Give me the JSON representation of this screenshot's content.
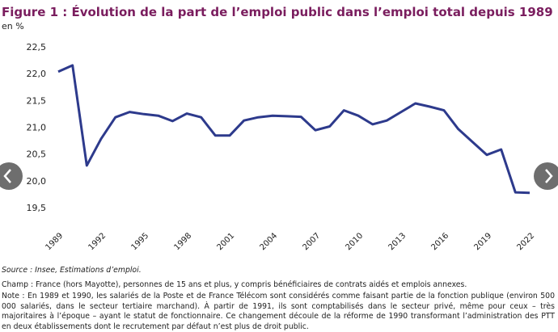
{
  "chart_data": {
    "type": "line",
    "title": "Figure 1 : Évolution de la part de l’emploi public dans l’emploi total depuis 1989",
    "y_unit": "en %",
    "categories": [
      "1989",
      null,
      null,
      "1992",
      null,
      null,
      "1995",
      null,
      null,
      "1998",
      null,
      null,
      "2001",
      null,
      null,
      "2004",
      null,
      null,
      "2007",
      null,
      null,
      "2010",
      null,
      null,
      "2013",
      null,
      null,
      "2016",
      null,
      null,
      "2019",
      null,
      null,
      "2022"
    ],
    "series": [
      {
        "color": "#2d3a8c",
        "values": [
          22.05,
          22.17,
          20.3,
          20.8,
          21.2,
          21.3,
          21.26,
          21.23,
          21.13,
          21.27,
          21.2,
          20.86,
          20.86,
          21.14,
          21.2,
          21.23,
          21.22,
          21.21,
          20.96,
          21.03,
          21.33,
          21.23,
          21.07,
          21.14,
          21.3,
          21.46,
          21.4,
          21.33,
          20.98,
          20.74,
          20.5,
          20.6,
          19.8,
          19.79
        ]
      }
    ],
    "ylim": [
      19.25,
      22.6
    ],
    "yticks": [
      {
        "value": 19.5,
        "label": "19,5"
      },
      {
        "value": 20,
        "label": "20,0"
      },
      {
        "value": 20.5,
        "label": "20,5"
      },
      {
        "value": 21,
        "label": "21,0"
      },
      {
        "value": 21.5,
        "label": "21,5"
      },
      {
        "value": 22,
        "label": "22,0"
      },
      {
        "value": 22.5,
        "label": "22,5"
      }
    ],
    "grid": false,
    "source": "Source : Insee, Estimations d’emploi.",
    "champ": "Champ : France (hors Mayotte), personnes de 15 ans et plus, y compris bénéficiaires de contrats aidés et emplois annexes.",
    "note": "Note : En 1989 et 1990, les salariés de la Poste et de France Télécom sont considérés comme faisant partie de la fonction publique (environ 500 000 salariés, dans le secteur tertiaire marchand). À partir de 1991, ils sont comptabilisés dans le secteur privé, même pour ceux – très majoritaires à l’époque – ayant le statut de fonctionnaire. Ce changement découle de la réforme de 1990 transformant l’administration des PTT en deux établissements dont le recrutement par défaut n’est plus de droit public."
  }
}
